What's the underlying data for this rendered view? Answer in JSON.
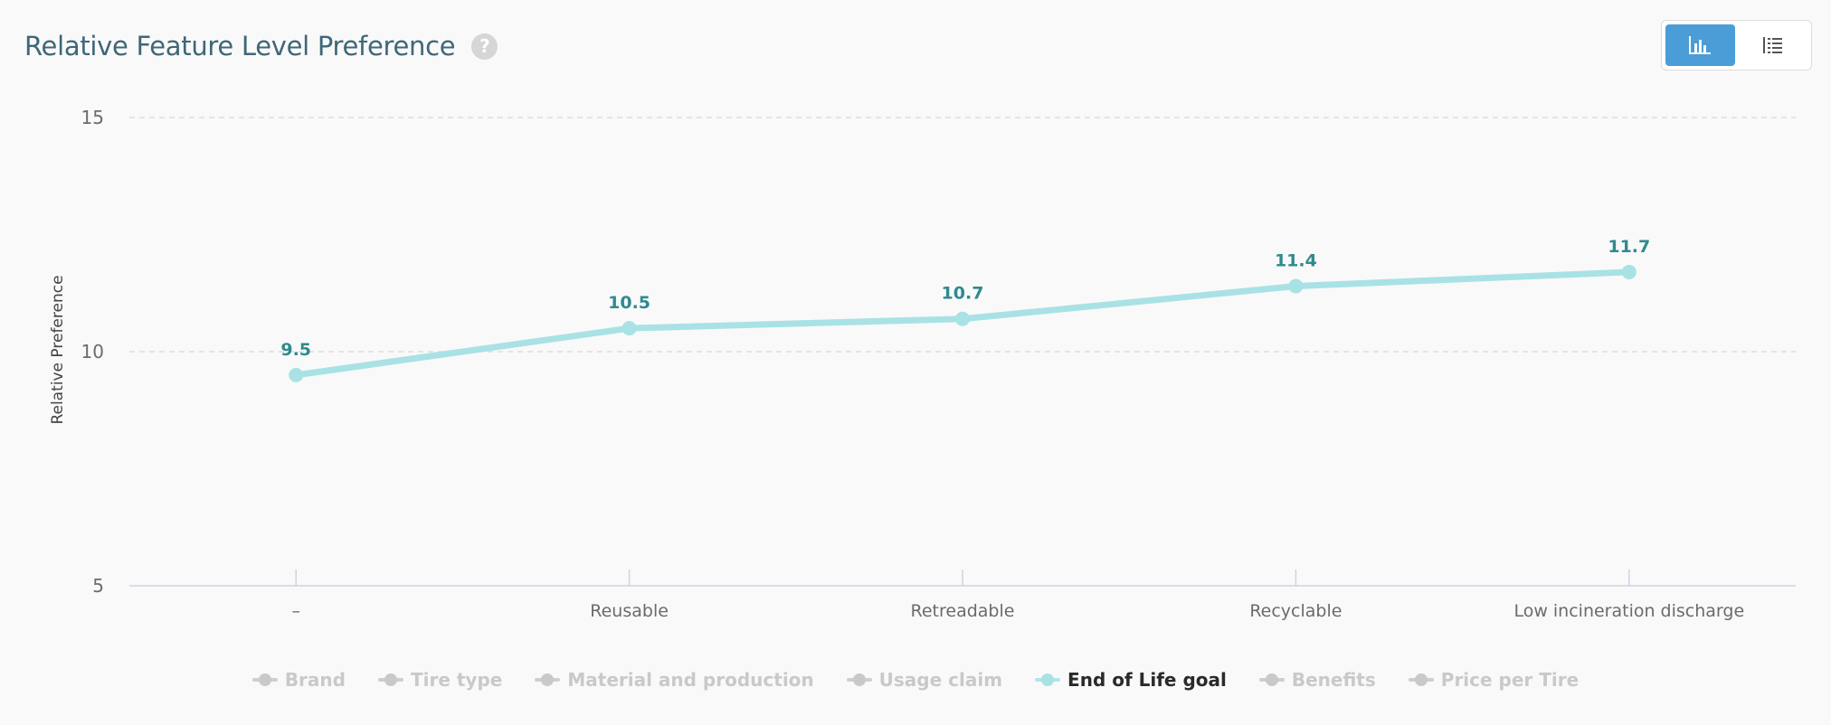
{
  "header": {
    "title": "Relative Feature Level Preference",
    "help_icon": "question-circle-icon"
  },
  "view_toggle": {
    "chart_icon": "bar-chart-icon",
    "table_icon": "table-list-icon",
    "active": "chart"
  },
  "legend": {
    "items": [
      {
        "label": "Brand",
        "active": false
      },
      {
        "label": "Tire type",
        "active": false
      },
      {
        "label": "Material and production",
        "active": false
      },
      {
        "label": "Usage claim",
        "active": false
      },
      {
        "label": "End of Life goal",
        "active": true
      },
      {
        "label": "Benefits",
        "active": false
      },
      {
        "label": "Price per Tire",
        "active": false
      }
    ]
  },
  "colors": {
    "line": "#a8e2e4",
    "data_label": "#2f8a8e",
    "grid": "#dddddd",
    "axis_text": "#6b6b6b",
    "active_button": "#4a9dd6"
  },
  "chart_data": {
    "type": "line",
    "categories": [
      "–",
      "Reusable",
      "Retreadable",
      "Recyclable",
      "Low incineration discharge"
    ],
    "series": [
      {
        "name": "End of Life goal",
        "values": [
          9.5,
          10.5,
          10.7,
          11.4,
          11.7
        ]
      }
    ],
    "data_labels": [
      "9.5",
      "10.5",
      "10.7",
      "11.4",
      "11.7"
    ],
    "ylabel": "Relative Preference",
    "xlabel": "",
    "ylim": [
      5,
      15
    ],
    "yticks": [
      5,
      10,
      15
    ],
    "grid": true,
    "legend_position": "bottom"
  }
}
